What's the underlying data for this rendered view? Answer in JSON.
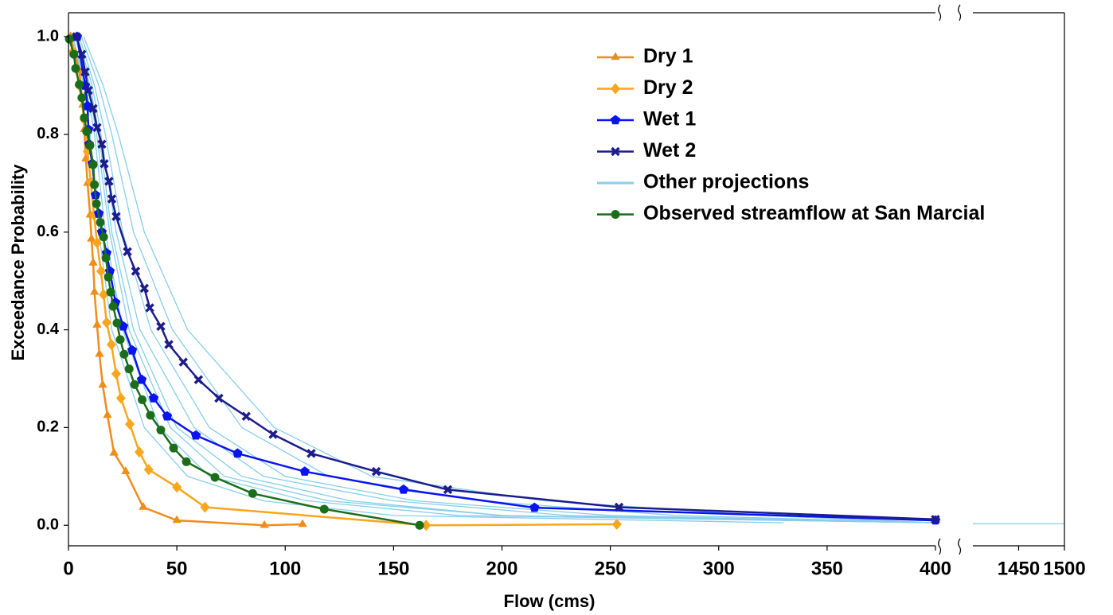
{
  "chart_data": {
    "type": "line",
    "x_label": "Flow (cms)",
    "y_label": "Exceedance Probability",
    "ylim": [
      -0.042,
      1.049
    ],
    "yticks": [
      {
        "value": 0,
        "label": "0.0"
      },
      0.2,
      0.4,
      0.6,
      0.8,
      {
        "value": 1,
        "label": "1.0"
      }
    ],
    "x_segments": [
      {
        "xlim": [
          0,
          400
        ],
        "xticks": [
          0,
          50,
          100,
          150,
          200,
          250,
          300,
          350,
          400
        ]
      },
      {
        "xlim": [
          1400,
          1500
        ],
        "xticks": [
          1450,
          1500
        ]
      }
    ],
    "legend": "upper right",
    "series": [
      {
        "name": "Dry 1",
        "color": "#f08c1a",
        "marker": "triangle",
        "x": [
          1,
          5,
          6.6,
          7.3,
          8,
          8.8,
          10,
          10.6,
          11.4,
          12,
          13.2,
          14.3,
          15.8,
          18,
          21,
          26.4,
          34.5,
          50,
          90.4,
          108
        ],
        "values": [
          1.0,
          0.93,
          0.86,
          0.81,
          0.75,
          0.7,
          0.635,
          0.586,
          0.537,
          0.477,
          0.41,
          0.35,
          0.287,
          0.225,
          0.148,
          0.11,
          0.037,
          0.01,
          0.0,
          0.002
        ]
      },
      {
        "name": "Dry 2",
        "color": "#f8a61c",
        "marker": "diamond",
        "x": [
          2.2,
          5,
          7.3,
          8.8,
          10.3,
          11.8,
          13.2,
          15,
          16.2,
          17.6,
          19.8,
          22,
          24.2,
          28.3,
          32.7,
          37,
          50,
          63,
          165,
          253
        ],
        "values": [
          0.97,
          0.9,
          0.83,
          0.765,
          0.703,
          0.635,
          0.578,
          0.52,
          0.472,
          0.415,
          0.37,
          0.31,
          0.26,
          0.207,
          0.15,
          0.114,
          0.078,
          0.037,
          0.0,
          0.002
        ]
      },
      {
        "name": "Wet 1",
        "color": "#0a14f0",
        "marker": "pentagon",
        "x": [
          4,
          7.7,
          8.8,
          9.2,
          9.5,
          11,
          12.5,
          14,
          15.4,
          17.6,
          19.1,
          21.7,
          25.3,
          29.4,
          33.8,
          39.3,
          45.5,
          58.8,
          78,
          109,
          154.6,
          215,
          400
        ],
        "values": [
          1.0,
          0.9,
          0.858,
          0.81,
          0.78,
          0.74,
          0.676,
          0.638,
          0.6,
          0.557,
          0.52,
          0.456,
          0.407,
          0.358,
          0.298,
          0.26,
          0.223,
          0.184,
          0.147,
          0.11,
          0.073,
          0.036,
          0.01
        ]
      },
      {
        "name": "Wet 2",
        "color": "#1c1c8c",
        "marker": "x",
        "x": [
          3.7,
          6.2,
          7.7,
          9.2,
          11.4,
          13.2,
          15.4,
          16.5,
          18.7,
          20,
          22,
          27.2,
          31,
          35,
          37.5,
          42.6,
          46.3,
          53,
          60,
          69.4,
          82,
          94.4,
          112,
          142,
          175,
          254,
          400
        ],
        "values": [
          1.0,
          0.964,
          0.928,
          0.89,
          0.853,
          0.814,
          0.78,
          0.74,
          0.704,
          0.668,
          0.632,
          0.56,
          0.52,
          0.485,
          0.445,
          0.407,
          0.37,
          0.334,
          0.298,
          0.26,
          0.223,
          0.186,
          0.147,
          0.11,
          0.073,
          0.037,
          0.012
        ]
      },
      {
        "name": "Other projections",
        "color": "#87ceeb",
        "lines": [
          {
            "x": [
              3,
              10,
              14,
              20,
              30,
              50,
              80,
              130,
              200,
              400
            ],
            "values": [
              1.0,
              0.9,
              0.8,
              0.6,
              0.4,
              0.2,
              0.1,
              0.05,
              0.02,
              0.005
            ]
          },
          {
            "x": [
              5,
              12,
              17,
              25,
              38,
              65,
              100,
              160,
              250,
              400
            ],
            "values": [
              1.0,
              0.9,
              0.8,
              0.6,
              0.4,
              0.2,
              0.1,
              0.05,
              0.02,
              0.005
            ]
          },
          {
            "x": [
              2,
              8,
              12,
              17,
              25,
              42,
              65,
              110,
              180,
              400
            ],
            "values": [
              1.0,
              0.9,
              0.8,
              0.6,
              0.4,
              0.2,
              0.1,
              0.05,
              0.02,
              0.005
            ]
          },
          {
            "x": [
              6,
              14,
              20,
              30,
              48,
              80,
              120,
              190,
              280,
              400
            ],
            "values": [
              1.0,
              0.9,
              0.8,
              0.6,
              0.4,
              0.2,
              0.1,
              0.05,
              0.02,
              0.005
            ]
          },
          {
            "x": [
              4,
              11,
              15,
              22,
              33,
              58,
              90,
              150,
              230,
              400
            ],
            "values": [
              1.0,
              0.9,
              0.8,
              0.6,
              0.4,
              0.2,
              0.1,
              0.05,
              0.02,
              0.005
            ]
          },
          {
            "x": [
              3,
              9,
              13,
              19,
              28,
              47,
              72,
              120,
              200,
              400
            ],
            "values": [
              1.0,
              0.9,
              0.8,
              0.6,
              0.4,
              0.2,
              0.1,
              0.05,
              0.02,
              0.005
            ]
          },
          {
            "x": [
              7,
              16,
              23,
              35,
              55,
              95,
              140,
              220,
              320,
              400
            ],
            "values": [
              1.0,
              0.9,
              0.8,
              0.6,
              0.4,
              0.2,
              0.1,
              0.05,
              0.02,
              0.005
            ]
          },
          {
            "x": [
              2,
              7,
              10,
              14,
              20,
              35,
              55,
              90,
              150,
              330
            ],
            "values": [
              1.0,
              0.9,
              0.8,
              0.6,
              0.4,
              0.2,
              0.1,
              0.05,
              0.02,
              0.005
            ]
          },
          {
            "x": [
              1400,
              1500
            ],
            "values": [
              0.003,
              0.003
            ]
          }
        ]
      },
      {
        "name": "Observed streamflow at San Marcial",
        "color": "#1a6e1a",
        "marker": "circle",
        "x": [
          0.4,
          2.5,
          3.3,
          5,
          6.2,
          7.3,
          8.4,
          9.9,
          11.4,
          12,
          12.9,
          14.7,
          16.2,
          17.3,
          18.4,
          19.5,
          20.6,
          22.4,
          23.9,
          25.7,
          28,
          30.5,
          34,
          37.8,
          42.6,
          48.5,
          54.4,
          67.6,
          85,
          118,
          162
        ],
        "values": [
          0.995,
          0.964,
          0.935,
          0.902,
          0.875,
          0.834,
          0.806,
          0.777,
          0.738,
          0.697,
          0.658,
          0.62,
          0.59,
          0.547,
          0.508,
          0.477,
          0.448,
          0.414,
          0.38,
          0.35,
          0.32,
          0.288,
          0.257,
          0.225,
          0.195,
          0.158,
          0.13,
          0.098,
          0.065,
          0.033,
          0.0
        ]
      }
    ]
  }
}
